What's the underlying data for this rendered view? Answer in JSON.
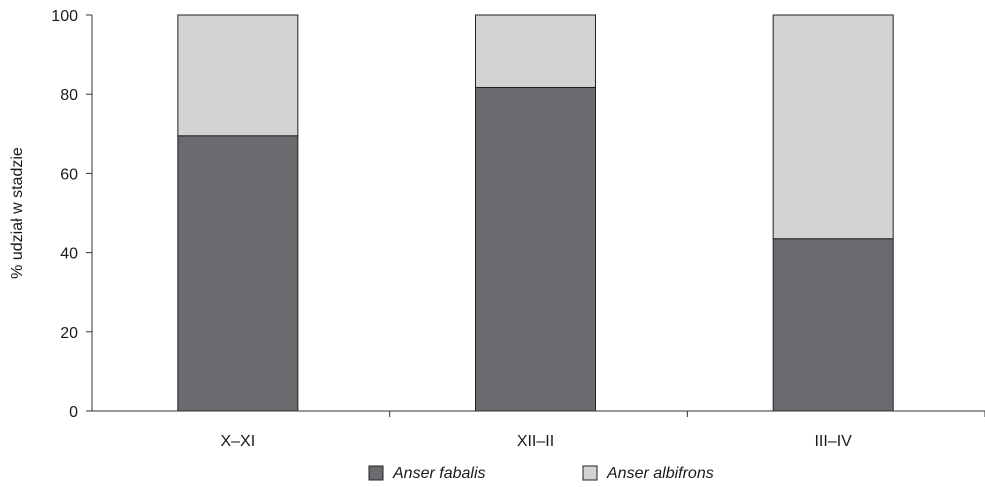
{
  "chart_data": {
    "type": "bar",
    "stacked": true,
    "categories": [
      "X–XI",
      "XII–II",
      "III–IV"
    ],
    "series": [
      {
        "name": "Anser fabalis",
        "values": [
          69.5,
          81.7,
          43.5
        ],
        "color": "#6b6b6f"
      },
      {
        "name": "Anser albifrons",
        "values": [
          30.5,
          18.3,
          56.5
        ],
        "color": "#d3d3d3"
      }
    ],
    "ylabel": "% udział w stadzie",
    "xlabel": "",
    "ylim": [
      0,
      100
    ],
    "yticks": [
      "0",
      "20",
      "40",
      "60",
      "80",
      "100"
    ],
    "grid": false,
    "legend_position": "bottom-center"
  }
}
